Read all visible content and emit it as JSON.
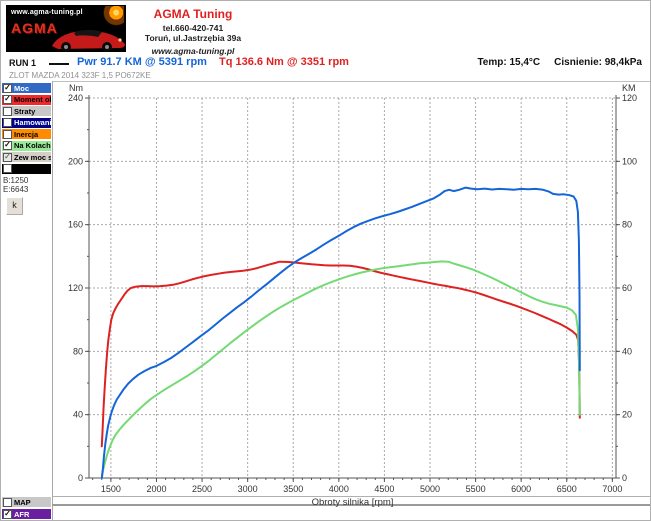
{
  "header": {
    "logo": {
      "url_text": "www.agma-tuning.pl",
      "brand": "AGMA"
    },
    "company": "AGMA Tuning",
    "phone": "tel.660-420-741",
    "address": "Toruń, ul.Jastrzębia 39a",
    "website": "www.agma-tuning.pl"
  },
  "run": {
    "label": "RUN 1",
    "power_reading": "Pwr  91.7 KM @ 5391 rpm",
    "torque_reading": "Tq 136.6 Nm @ 3351 rpm",
    "temp": "Temp: 15,4°C",
    "pressure": "Cisnienie: 98,4kPa",
    "subtitle": "ZLOT MAZDA 2014 323F 1,5 PO672KE"
  },
  "colors": {
    "power": "#1565d8",
    "torque": "#dd2222",
    "wheel": "#74da74",
    "grid": "#aaaaaa",
    "axis": "#555555",
    "tick_text": "#333333"
  },
  "sidebar": {
    "channels": [
      {
        "label": "Moc",
        "checked": true,
        "disabled": false,
        "bg": "#316ac5",
        "fg": "#ffffff"
      },
      {
        "label": "Moment obr.",
        "checked": true,
        "disabled": false,
        "bg": "#ee2a2a",
        "fg": "#000000"
      },
      {
        "label": "Straty",
        "checked": false,
        "disabled": false,
        "bg": "#c8c8c8",
        "fg": "#000000"
      },
      {
        "label": "Hamowanie",
        "checked": false,
        "disabled": false,
        "bg": "#000088",
        "fg": "#ffffff"
      },
      {
        "label": "Inercja",
        "checked": false,
        "disabled": false,
        "bg": "#ff8c00",
        "fg": "#000000"
      },
      {
        "label": "Na Kolach",
        "checked": true,
        "disabled": false,
        "bg": "#97e897",
        "fg": "#000000"
      },
      {
        "label": "Zew moc str",
        "checked": true,
        "disabled": true,
        "bg": "#d4d0c8",
        "fg": "#000000"
      },
      {
        "label": "",
        "checked": false,
        "disabled": false,
        "bg": "#000000",
        "fg": "#ffffff"
      }
    ],
    "range_begin": "B:1250",
    "range_end": "E:6643",
    "small_button_label": "k",
    "bottom_channels": [
      {
        "label": "MAP",
        "checked": false,
        "disabled": false,
        "bg": "#c8c8c8",
        "fg": "#000000"
      },
      {
        "label": "AFR",
        "checked": true,
        "disabled": false,
        "bg": "#6a1fa0",
        "fg": "#ffffff"
      }
    ]
  },
  "chart_data": {
    "type": "line",
    "xlabel": "Obroty silnika [rpm]",
    "ylabel_left": "Nm",
    "ylabel_right": "KM",
    "x_range": [
      1260,
      7040
    ],
    "y_left_range": [
      0,
      240
    ],
    "y_right_range": [
      0,
      120
    ],
    "x_ticks": [
      1500,
      2000,
      2500,
      3000,
      3500,
      4000,
      4500,
      5000,
      5500,
      6000,
      6500,
      7000
    ],
    "y_left_ticks": [
      0,
      40,
      80,
      120,
      160,
      200,
      240
    ],
    "y_right_ticks": [
      0,
      20,
      40,
      60,
      80,
      100,
      120
    ],
    "x_minor_step": 100,
    "y_left_minor_step": 20,
    "y_right_minor_step": 10,
    "grid": true,
    "series": [
      {
        "name": "Moment obr. (Nm)",
        "axis": "left",
        "color": "#dd2222",
        "points": [
          [
            1400,
            20
          ],
          [
            1410,
            32
          ],
          [
            1420,
            45
          ],
          [
            1432,
            57
          ],
          [
            1445,
            69
          ],
          [
            1458,
            79
          ],
          [
            1472,
            87
          ],
          [
            1488,
            94
          ],
          [
            1505,
            100
          ],
          [
            1525,
            104
          ],
          [
            1550,
            107
          ],
          [
            1580,
            110
          ],
          [
            1615,
            113
          ],
          [
            1650,
            116
          ],
          [
            1685,
            118.5
          ],
          [
            1720,
            120
          ],
          [
            1770,
            120.8
          ],
          [
            1830,
            121.2
          ],
          [
            1900,
            121.2
          ],
          [
            1970,
            121
          ],
          [
            2040,
            121.2
          ],
          [
            2110,
            121.5
          ],
          [
            2180,
            122
          ],
          [
            2250,
            123
          ],
          [
            2320,
            124.2
          ],
          [
            2390,
            125.4
          ],
          [
            2460,
            126.5
          ],
          [
            2530,
            127.5
          ],
          [
            2600,
            128.3
          ],
          [
            2670,
            129
          ],
          [
            2740,
            129.6
          ],
          [
            2810,
            130.1
          ],
          [
            2880,
            130.5
          ],
          [
            2950,
            130.9
          ],
          [
            3020,
            131.5
          ],
          [
            3090,
            132.4
          ],
          [
            3160,
            133.5
          ],
          [
            3230,
            134.7
          ],
          [
            3300,
            135.8
          ],
          [
            3351,
            136.6
          ],
          [
            3420,
            136.5
          ],
          [
            3490,
            136.2
          ],
          [
            3560,
            135.8
          ],
          [
            3630,
            135.4
          ],
          [
            3700,
            135
          ],
          [
            3770,
            134.7
          ],
          [
            3840,
            134.4
          ],
          [
            3910,
            134.2
          ],
          [
            3980,
            134.2
          ],
          [
            4050,
            134.2
          ],
          [
            4120,
            134
          ],
          [
            4190,
            133.5
          ],
          [
            4260,
            132.7
          ],
          [
            4330,
            131.7
          ],
          [
            4400,
            130.5
          ],
          [
            4470,
            129.5
          ],
          [
            4540,
            128.6
          ],
          [
            4610,
            127.7
          ],
          [
            4680,
            126.8
          ],
          [
            4750,
            126
          ],
          [
            4820,
            125.2
          ],
          [
            4890,
            124.4
          ],
          [
            4960,
            123.6
          ],
          [
            5030,
            122.8
          ],
          [
            5100,
            122
          ],
          [
            5170,
            121.3
          ],
          [
            5240,
            120.6
          ],
          [
            5310,
            119.9
          ],
          [
            5380,
            119
          ],
          [
            5450,
            118
          ],
          [
            5520,
            116.9
          ],
          [
            5590,
            115.6
          ],
          [
            5660,
            114.2
          ],
          [
            5730,
            112.8
          ],
          [
            5800,
            111.5
          ],
          [
            5870,
            110.2
          ],
          [
            5940,
            108.8
          ],
          [
            6010,
            107.3
          ],
          [
            6080,
            105.8
          ],
          [
            6150,
            104.2
          ],
          [
            6220,
            102.5
          ],
          [
            6290,
            100.8
          ],
          [
            6360,
            99
          ],
          [
            6430,
            97.2
          ],
          [
            6500,
            95
          ],
          [
            6560,
            92.8
          ],
          [
            6605,
            90.5
          ],
          [
            6625,
            87
          ],
          [
            6635,
            72
          ],
          [
            6641,
            52
          ],
          [
            6643,
            38
          ]
        ]
      },
      {
        "name": "Na Kolach (KM)",
        "axis": "right",
        "color": "#74da74",
        "points": [
          [
            1400,
            0
          ],
          [
            1415,
            2.5
          ],
          [
            1435,
            5
          ],
          [
            1460,
            7.5
          ],
          [
            1490,
            10
          ],
          [
            1520,
            12
          ],
          [
            1555,
            13.8
          ],
          [
            1595,
            15.3
          ],
          [
            1640,
            16.8
          ],
          [
            1690,
            18.3
          ],
          [
            1745,
            19.9
          ],
          [
            1805,
            21.6
          ],
          [
            1870,
            23.3
          ],
          [
            1940,
            25
          ],
          [
            2010,
            26.4
          ],
          [
            2090,
            27.9
          ],
          [
            2170,
            29.3
          ],
          [
            2250,
            30.7
          ],
          [
            2330,
            32.1
          ],
          [
            2410,
            33.6
          ],
          [
            2490,
            35.2
          ],
          [
            2570,
            36.9
          ],
          [
            2650,
            38.8
          ],
          [
            2730,
            40.7
          ],
          [
            2810,
            42.6
          ],
          [
            2890,
            44.4
          ],
          [
            2970,
            46.2
          ],
          [
            3050,
            47.9
          ],
          [
            3130,
            49.6
          ],
          [
            3210,
            51.2
          ],
          [
            3290,
            52.7
          ],
          [
            3370,
            54.1
          ],
          [
            3450,
            55.4
          ],
          [
            3530,
            56.6
          ],
          [
            3610,
            57.8
          ],
          [
            3690,
            59
          ],
          [
            3770,
            60.1
          ],
          [
            3850,
            61.1
          ],
          [
            3930,
            62
          ],
          [
            4010,
            62.8
          ],
          [
            4090,
            63.6
          ],
          [
            4170,
            64.3
          ],
          [
            4250,
            64.9
          ],
          [
            4330,
            65.4
          ],
          [
            4410,
            65.9
          ],
          [
            4490,
            66.3
          ],
          [
            4570,
            66.6
          ],
          [
            4650,
            66.9
          ],
          [
            4730,
            67.2
          ],
          [
            4810,
            67.5
          ],
          [
            4890,
            67.8
          ],
          [
            4970,
            68
          ],
          [
            5050,
            68.2
          ],
          [
            5130,
            68.4
          ],
          [
            5200,
            68.3
          ],
          [
            5260,
            67.7
          ],
          [
            5330,
            67.1
          ],
          [
            5400,
            66.5
          ],
          [
            5470,
            65.8
          ],
          [
            5540,
            65
          ],
          [
            5610,
            64.1
          ],
          [
            5680,
            63.2
          ],
          [
            5750,
            62.2
          ],
          [
            5820,
            61.2
          ],
          [
            5890,
            60.2
          ],
          [
            5960,
            59.2
          ],
          [
            6030,
            58.2
          ],
          [
            6100,
            57.2
          ],
          [
            6170,
            56.3
          ],
          [
            6240,
            55.6
          ],
          [
            6310,
            55
          ],
          [
            6380,
            54.6
          ],
          [
            6440,
            54.2
          ],
          [
            6500,
            53.8
          ],
          [
            6555,
            53
          ],
          [
            6600,
            51.5
          ],
          [
            6622,
            47
          ],
          [
            6633,
            38
          ],
          [
            6640,
            27
          ],
          [
            6643,
            20
          ]
        ]
      },
      {
        "name": "Moc (KM)",
        "axis": "right",
        "color": "#1565d8",
        "points": [
          [
            1400,
            0
          ],
          [
            1412,
            3
          ],
          [
            1425,
            7
          ],
          [
            1440,
            11
          ],
          [
            1455,
            14
          ],
          [
            1470,
            16.5
          ],
          [
            1490,
            19
          ],
          [
            1510,
            21
          ],
          [
            1535,
            23
          ],
          [
            1565,
            24.8
          ],
          [
            1600,
            26.3
          ],
          [
            1640,
            28
          ],
          [
            1690,
            29.8
          ],
          [
            1740,
            31.2
          ],
          [
            1800,
            32.6
          ],
          [
            1870,
            33.8
          ],
          [
            1940,
            34.8
          ],
          [
            2000,
            35.4
          ],
          [
            2080,
            36.6
          ],
          [
            2160,
            37.9
          ],
          [
            2240,
            39.5
          ],
          [
            2320,
            41.2
          ],
          [
            2400,
            42.9
          ],
          [
            2480,
            44.7
          ],
          [
            2560,
            46.4
          ],
          [
            2640,
            48.3
          ],
          [
            2720,
            50.2
          ],
          [
            2800,
            52
          ],
          [
            2880,
            53.8
          ],
          [
            2960,
            55.5
          ],
          [
            3040,
            57.3
          ],
          [
            3120,
            59.2
          ],
          [
            3200,
            61
          ],
          [
            3280,
            62.9
          ],
          [
            3360,
            64.8
          ],
          [
            3440,
            66.6
          ],
          [
            3520,
            68.2
          ],
          [
            3600,
            69.6
          ],
          [
            3680,
            70.9
          ],
          [
            3760,
            72.3
          ],
          [
            3840,
            73.8
          ],
          [
            3920,
            75.2
          ],
          [
            4000,
            76.5
          ],
          [
            4080,
            77.9
          ],
          [
            4160,
            79.2
          ],
          [
            4240,
            80.3
          ],
          [
            4320,
            81.2
          ],
          [
            4400,
            82
          ],
          [
            4480,
            82.7
          ],
          [
            4560,
            83.3
          ],
          [
            4640,
            84
          ],
          [
            4720,
            84.8
          ],
          [
            4800,
            85.6
          ],
          [
            4880,
            86.5
          ],
          [
            4960,
            87.4
          ],
          [
            5040,
            88.3
          ],
          [
            5110,
            89.5
          ],
          [
            5160,
            90.6
          ],
          [
            5210,
            91
          ],
          [
            5260,
            90.6
          ],
          [
            5320,
            91
          ],
          [
            5391,
            91.7
          ],
          [
            5450,
            91.4
          ],
          [
            5520,
            91.2
          ],
          [
            5600,
            91.4
          ],
          [
            5680,
            91.1
          ],
          [
            5760,
            91.3
          ],
          [
            5840,
            91.2
          ],
          [
            5920,
            91
          ],
          [
            6000,
            91.3
          ],
          [
            6080,
            91.2
          ],
          [
            6160,
            91.3
          ],
          [
            6240,
            91
          ],
          [
            6300,
            90.5
          ],
          [
            6350,
            89.7
          ],
          [
            6410,
            89.5
          ],
          [
            6470,
            89.6
          ],
          [
            6530,
            89.3
          ],
          [
            6575,
            88.9
          ],
          [
            6605,
            87.5
          ],
          [
            6622,
            84
          ],
          [
            6633,
            75
          ],
          [
            6640,
            58
          ],
          [
            6643,
            34
          ]
        ]
      }
    ]
  }
}
